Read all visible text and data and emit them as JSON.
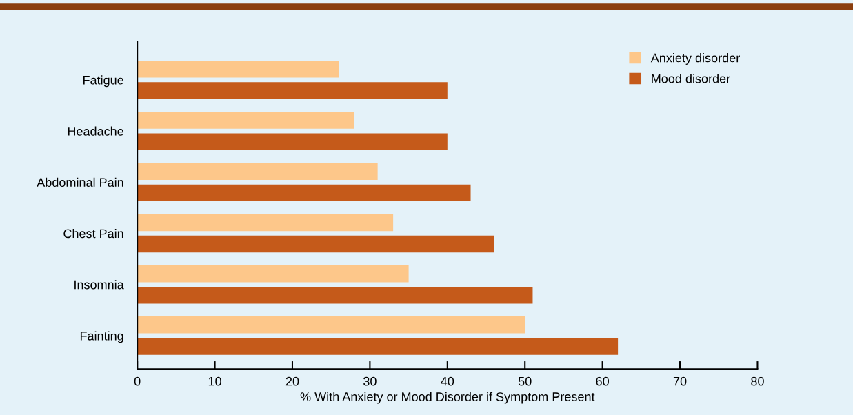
{
  "chart_data": {
    "type": "bar",
    "orientation": "horizontal",
    "xlabel": "% With Anxiety or Mood Disorder if Symptom Present",
    "categories": [
      "Fatigue",
      "Headache",
      "Abdominal Pain",
      "Chest Pain",
      "Insomnia",
      "Fainting"
    ],
    "series": [
      {
        "name": "Anxiety disorder",
        "color": "#fdc78a",
        "values": [
          26,
          28,
          31,
          33,
          35,
          50
        ]
      },
      {
        "name": "Mood disorder",
        "color": "#c55a1a",
        "values": [
          40,
          40,
          43,
          46,
          51,
          62
        ]
      }
    ],
    "xlim": [
      0,
      80
    ],
    "xticks": [
      0,
      10,
      20,
      30,
      40,
      50,
      60,
      70,
      80
    ],
    "grid": false,
    "legend": "top right"
  }
}
